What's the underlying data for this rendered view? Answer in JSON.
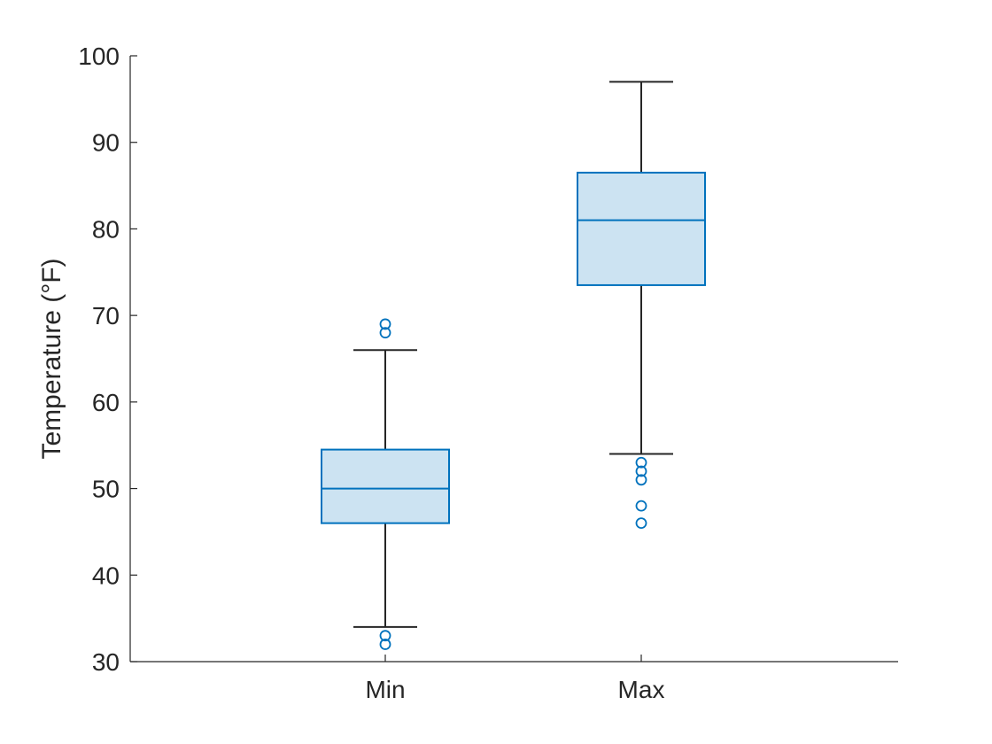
{
  "chart_data": {
    "type": "boxplot",
    "title": "",
    "xlabel": "",
    "ylabel": "Temperature (°F)",
    "ylim": [
      30,
      100
    ],
    "yticks": [
      30,
      40,
      50,
      60,
      70,
      80,
      90,
      100
    ],
    "grid": false,
    "colors": {
      "box_edge": "#0072BD",
      "box_fill": "#CCE3F2",
      "whisker": "#262626",
      "axis": "#262626",
      "outlier": "#0072BD"
    },
    "categories": [
      "Min",
      "Max"
    ],
    "boxes": [
      {
        "category": "Min",
        "lower_whisker": 34,
        "q1": 46,
        "median": 50,
        "q3": 54.5,
        "upper_whisker": 66,
        "outliers": [
          68,
          69,
          33,
          32
        ]
      },
      {
        "category": "Max",
        "lower_whisker": 54,
        "q1": 73.5,
        "median": 81,
        "q3": 86.5,
        "upper_whisker": 97,
        "outliers": [
          53,
          52,
          51,
          48,
          46
        ]
      }
    ]
  }
}
